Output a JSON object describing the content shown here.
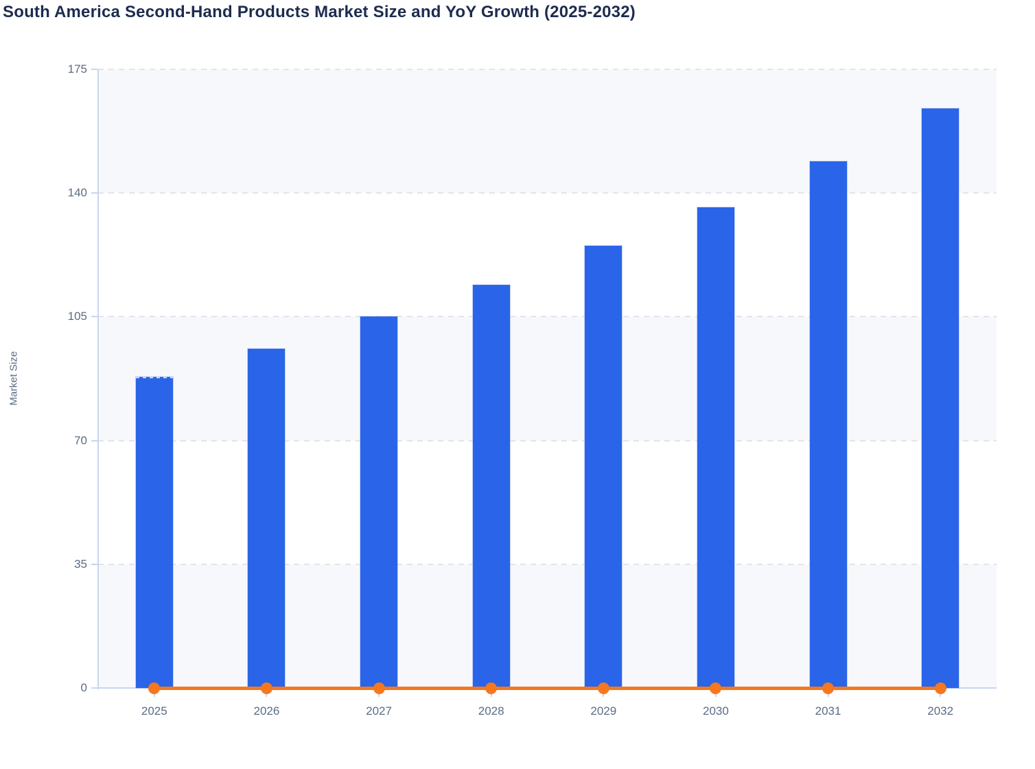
{
  "title": "South America Second-Hand Products Market Size and YoY Growth (2025-2032)",
  "chart_data": {
    "type": "bar",
    "title": "South America Second-Hand Products Market Size and YoY Growth (2025-2032)",
    "xlabel": "",
    "ylabel": "Market Size",
    "categories": [
      "2025",
      "2026",
      "2027",
      "2028",
      "2029",
      "2030",
      "2031",
      "2032"
    ],
    "series": [
      {
        "name": "Market Size",
        "type": "bar",
        "color": "#2a64e8",
        "values": [
          88,
          96,
          105,
          114,
          125,
          136,
          149,
          164
        ],
        "first_bar_dashed_top": true
      },
      {
        "name": "YoY Growth",
        "type": "line",
        "color": "#f5781e",
        "marker": "circle",
        "values": [
          0,
          0,
          0,
          0,
          0,
          0,
          0,
          0
        ]
      }
    ],
    "ylim": [
      0,
      175
    ],
    "yticks": [
      0,
      35,
      70,
      105,
      140,
      175
    ],
    "grid": "horizontal-dashed",
    "plot_bands": [
      [
        0,
        35
      ],
      [
        70,
        105
      ],
      [
        140,
        175
      ]
    ],
    "legend_position": "none"
  },
  "colors": {
    "bar": "#2a64e8",
    "line": "#f5781e",
    "axis": "#c8d4f1",
    "gridline": "#e2e4eb",
    "band_fill": "#f7f8fb",
    "tick_text": "#5b6b84",
    "title_text": "#1d2c4f"
  }
}
